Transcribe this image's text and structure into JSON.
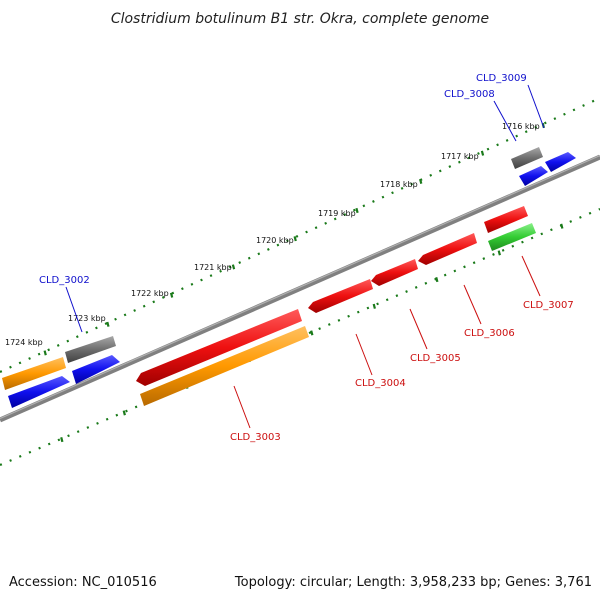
{
  "title": "Clostridium botulinum B1 str. Okra, complete genome",
  "footer": {
    "accession": "Accession: NC_010516",
    "summary": "Topology: circular; Length: 3,958,233 bp; Genes: 3,761"
  },
  "scale_labels": [
    "1716 kbp",
    "1717 kbp",
    "1718 kbp",
    "1719 kbp",
    "1720 kbp",
    "1721 kbp",
    "1722 kbp",
    "1723 kbp",
    "1724 kbp"
  ],
  "genes": [
    {
      "name": "CLD_3009",
      "color": "#0000ee"
    },
    {
      "name": "CLD_3008",
      "color": "#0000ee"
    },
    {
      "name": "CLD_3002",
      "color": "#0000ee"
    },
    {
      "name": "CLD_3003",
      "color": "#dd0000"
    },
    {
      "name": "CLD_3004",
      "color": "#dd0000"
    },
    {
      "name": "CLD_3005",
      "color": "#dd0000"
    },
    {
      "name": "CLD_3006",
      "color": "#dd0000"
    },
    {
      "name": "CLD_3007",
      "color": "#dd0000"
    }
  ],
  "feature_colors": {
    "backbone": "#7a7a7a",
    "cds_blue": "#1a1aee",
    "gene_red": "#ee1111",
    "misc_orange": "#ff9900",
    "grey_feature": "#6e6e6e",
    "green_feature": "#33cc33",
    "tick_green": "#1a7a1a"
  }
}
